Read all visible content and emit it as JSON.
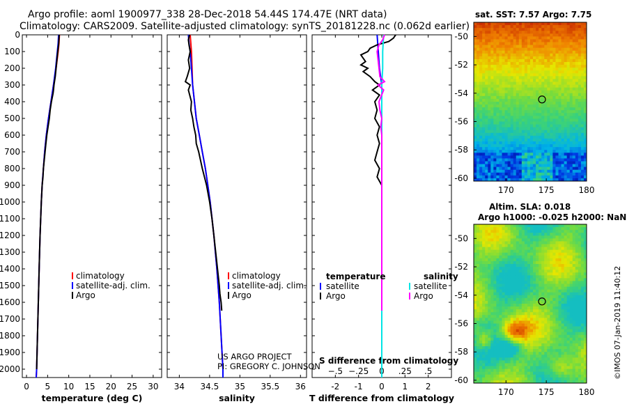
{
  "title_line1": "Argo profile: aoml 1900977_338 28-Dec-2018 54.44S 174.47E (NRT data)",
  "title_line2": "Climatology: CARS2009. Satellite-adjusted climatology: synTS_20181228.nc (0.062d earlier)",
  "credit_line1": "US ARGO PROJECT",
  "credit_line2": "PI: GREGORY C. JOHNSON",
  "sst_title": "sat. SST: 7.57 Argo: 7.75",
  "sla_title1": "Altim. SLA: 0.018",
  "sla_title2": "Argo h1000: -0.025 h2000: NaN",
  "watermark": "©IMOS 07-Jan-2019 11:40:12",
  "colors": {
    "climatology": "#ff0000",
    "satellite": "#0000ff",
    "argo": "#000000",
    "sat_sal": "#00e5e5",
    "argo_sal": "#ff00ff"
  },
  "chart_data": [
    {
      "type": "line",
      "name": "temperature",
      "xlabel": "temperature (deg C)",
      "ylim": [
        2050,
        0
      ],
      "xlim": [
        -1,
        32
      ],
      "xticks": [
        0,
        5,
        10,
        15,
        20,
        25,
        30
      ],
      "yticks": [
        0,
        100,
        200,
        300,
        400,
        500,
        600,
        700,
        800,
        900,
        1000,
        1100,
        1200,
        1300,
        1400,
        1500,
        1600,
        1700,
        1800,
        1900,
        2000
      ],
      "legend": [
        "climatology",
        "satellite-adj. clim.",
        "Argo"
      ],
      "series": [
        {
          "name": "climatology",
          "depth": [
            0,
            50,
            100,
            200,
            300,
            400,
            500,
            600,
            700,
            800,
            900,
            1000,
            1200,
            1400,
            1600,
            1800,
            2000,
            2050
          ],
          "values": [
            7.8,
            7.7,
            7.5,
            7.0,
            6.4,
            5.8,
            5.2,
            4.7,
            4.3,
            4.0,
            3.7,
            3.5,
            3.2,
            3.0,
            2.8,
            2.6,
            2.4,
            2.3
          ]
        },
        {
          "name": "satellite-adj. clim.",
          "depth": [
            0,
            50,
            100,
            200,
            300,
            400,
            500,
            600,
            700,
            800,
            900,
            1000,
            1200,
            1400,
            1600,
            1800,
            2000,
            2050
          ],
          "values": [
            7.6,
            7.5,
            7.3,
            6.9,
            6.4,
            5.8,
            5.2,
            4.7,
            4.3,
            4.0,
            3.7,
            3.5,
            3.2,
            3.0,
            2.8,
            2.6,
            2.4,
            2.3
          ]
        },
        {
          "name": "Argo",
          "depth": [
            0,
            20,
            60,
            100,
            150,
            200,
            250,
            300,
            330,
            350,
            400,
            450,
            500,
            550,
            600,
            650,
            700,
            750,
            800,
            850,
            900,
            950,
            1000,
            1100,
            1200,
            1300,
            1400,
            1500,
            1600,
            1700,
            1800,
            1900,
            2000
          ],
          "values": [
            7.75,
            7.7,
            7.6,
            7.4,
            7.2,
            7.0,
            6.8,
            6.5,
            6.4,
            6.3,
            5.9,
            5.6,
            5.4,
            5.1,
            4.8,
            4.6,
            4.4,
            4.2,
            4.0,
            3.9,
            3.7,
            3.6,
            3.5,
            3.35,
            3.2,
            3.1,
            3.0,
            2.9,
            2.8,
            2.7,
            2.6,
            2.5,
            2.4
          ]
        }
      ]
    },
    {
      "type": "line",
      "name": "salinity",
      "xlabel": "salinity",
      "ylim": [
        2050,
        0
      ],
      "xlim": [
        33.8,
        36.1
      ],
      "xticks": [
        34,
        34.5,
        35,
        35.5,
        36
      ],
      "legend": [
        "climatology",
        "satellite-adj. clim.",
        "Argo"
      ],
      "series": [
        {
          "name": "climatology",
          "depth": [
            0,
            50,
            100,
            200,
            300,
            400,
            500,
            600,
            700,
            800,
            900,
            1000,
            1200,
            1400,
            1600,
            1800,
            2000,
            2050
          ],
          "values": [
            34.18,
            34.19,
            34.2,
            34.21,
            34.22,
            34.25,
            34.28,
            34.33,
            34.38,
            34.43,
            34.47,
            34.51,
            34.57,
            34.62,
            34.66,
            34.69,
            34.72,
            34.72
          ]
        },
        {
          "name": "satellite-adj. clim.",
          "depth": [
            0,
            50,
            100,
            200,
            300,
            400,
            500,
            600,
            700,
            800,
            900,
            1000,
            1200,
            1400,
            1600,
            1800,
            2000,
            2050
          ],
          "values": [
            34.15,
            34.16,
            34.18,
            34.2,
            34.22,
            34.25,
            34.28,
            34.33,
            34.38,
            34.43,
            34.47,
            34.51,
            34.57,
            34.62,
            34.66,
            34.69,
            34.72,
            34.72
          ]
        },
        {
          "name": "Argo",
          "depth": [
            0,
            30,
            60,
            100,
            150,
            200,
            250,
            280,
            300,
            330,
            400,
            450,
            500,
            550,
            600,
            650,
            700,
            800,
            900,
            1000,
            1100,
            1200,
            1300,
            1400,
            1500,
            1550,
            1600,
            1650
          ],
          "values": [
            34.17,
            34.15,
            34.16,
            34.18,
            34.15,
            34.17,
            34.13,
            34.1,
            34.18,
            34.15,
            34.2,
            34.19,
            34.22,
            34.24,
            34.27,
            34.28,
            34.32,
            34.38,
            34.45,
            34.5,
            34.54,
            34.57,
            34.6,
            34.63,
            34.66,
            34.67,
            34.69,
            34.7
          ]
        }
      ]
    },
    {
      "type": "line",
      "name": "difference",
      "xlabel": "T difference from climatology",
      "xlabel2": "S difference from climatology",
      "ylim": [
        2050,
        0
      ],
      "xlim": [
        -3,
        3
      ],
      "xticks": [
        -2,
        -1,
        0,
        1,
        2
      ],
      "xticks_s": [
        -0.5,
        -0.25,
        0,
        0.25,
        0.5
      ],
      "legend_left_title": "temperature",
      "legend_right_title": "salinity",
      "legend_left": [
        "satellite",
        "Argo"
      ],
      "legend_right": [
        "satellite",
        "Argo"
      ],
      "series": [
        {
          "name": "T satellite",
          "depth": [
            0,
            100,
            200,
            300,
            400,
            500,
            600,
            700,
            800,
            900,
            1000,
            1200,
            1400,
            1600,
            1800,
            2000,
            2050
          ],
          "values": [
            -0.2,
            -0.15,
            -0.1,
            0,
            0,
            0,
            0,
            0,
            0,
            0,
            0,
            0,
            0,
            0,
            0,
            0,
            0
          ]
        },
        {
          "name": "T Argo",
          "depth": [
            0,
            20,
            40,
            60,
            80,
            100,
            120,
            140,
            160,
            180,
            200,
            220,
            250,
            280,
            300,
            330,
            360,
            400,
            450,
            500,
            550,
            600,
            650,
            700,
            750,
            800,
            850,
            900,
            950,
            1000
          ],
          "values": [
            0.6,
            0.5,
            0.3,
            -0.2,
            -0.5,
            -0.6,
            -0.9,
            -0.8,
            -0.7,
            -0.9,
            -0.6,
            -0.8,
            -0.5,
            -0.3,
            -0.1,
            -0.4,
            -0.1,
            -0.3,
            -0.2,
            -0.3,
            -0.1,
            -0.2,
            -0.1,
            -0.2,
            -0.3,
            -0.1,
            -0.2,
            0,
            0,
            0
          ]
        },
        {
          "name": "S satellite",
          "depth": [
            0,
            100,
            200,
            300,
            400,
            500,
            600,
            700,
            800,
            900,
            1000,
            1200,
            1400,
            1600,
            1800,
            2000,
            2050
          ],
          "values": [
            0.02,
            0.01,
            0.01,
            0,
            0,
            0,
            0,
            0,
            0,
            0,
            0,
            0,
            0,
            0,
            0,
            0,
            0
          ]
        },
        {
          "name": "S Argo",
          "depth": [
            0,
            30,
            60,
            100,
            150,
            200,
            250,
            280,
            300,
            330,
            400,
            450,
            500,
            550,
            600,
            700,
            800,
            900,
            1000,
            1100,
            1200,
            1300,
            1400,
            1500,
            1600,
            1650
          ],
          "values": [
            0.03,
            0.01,
            -0.03,
            -0.05,
            -0.04,
            -0.03,
            -0.02,
            0.03,
            -0.04,
            0.02,
            -0.03,
            -0.02,
            0,
            -0.01,
            0,
            0,
            0,
            0,
            0,
            0,
            0,
            0,
            0,
            0,
            0,
            0
          ]
        }
      ]
    },
    {
      "type": "heatmap",
      "name": "sst_map",
      "title": "sat. SST: 7.57 Argo: 7.75",
      "xlim": [
        166,
        180
      ],
      "ylim": [
        -60.2,
        -49
      ],
      "xticks": [
        170,
        175,
        180
      ],
      "yticks": [
        -50,
        -52,
        -54,
        -56,
        -58,
        -60
      ],
      "marker": {
        "lon": 174.47,
        "lat": -54.44
      }
    },
    {
      "type": "heatmap",
      "name": "sla_map",
      "title": "Altim. SLA: 0.018",
      "xlim": [
        166,
        180
      ],
      "ylim": [
        -60.2,
        -49
      ],
      "xticks": [
        170,
        175,
        180
      ],
      "yticks": [
        -50,
        -52,
        -54,
        -56,
        -58,
        -60
      ],
      "marker": {
        "lon": 174.47,
        "lat": -54.44
      }
    }
  ]
}
